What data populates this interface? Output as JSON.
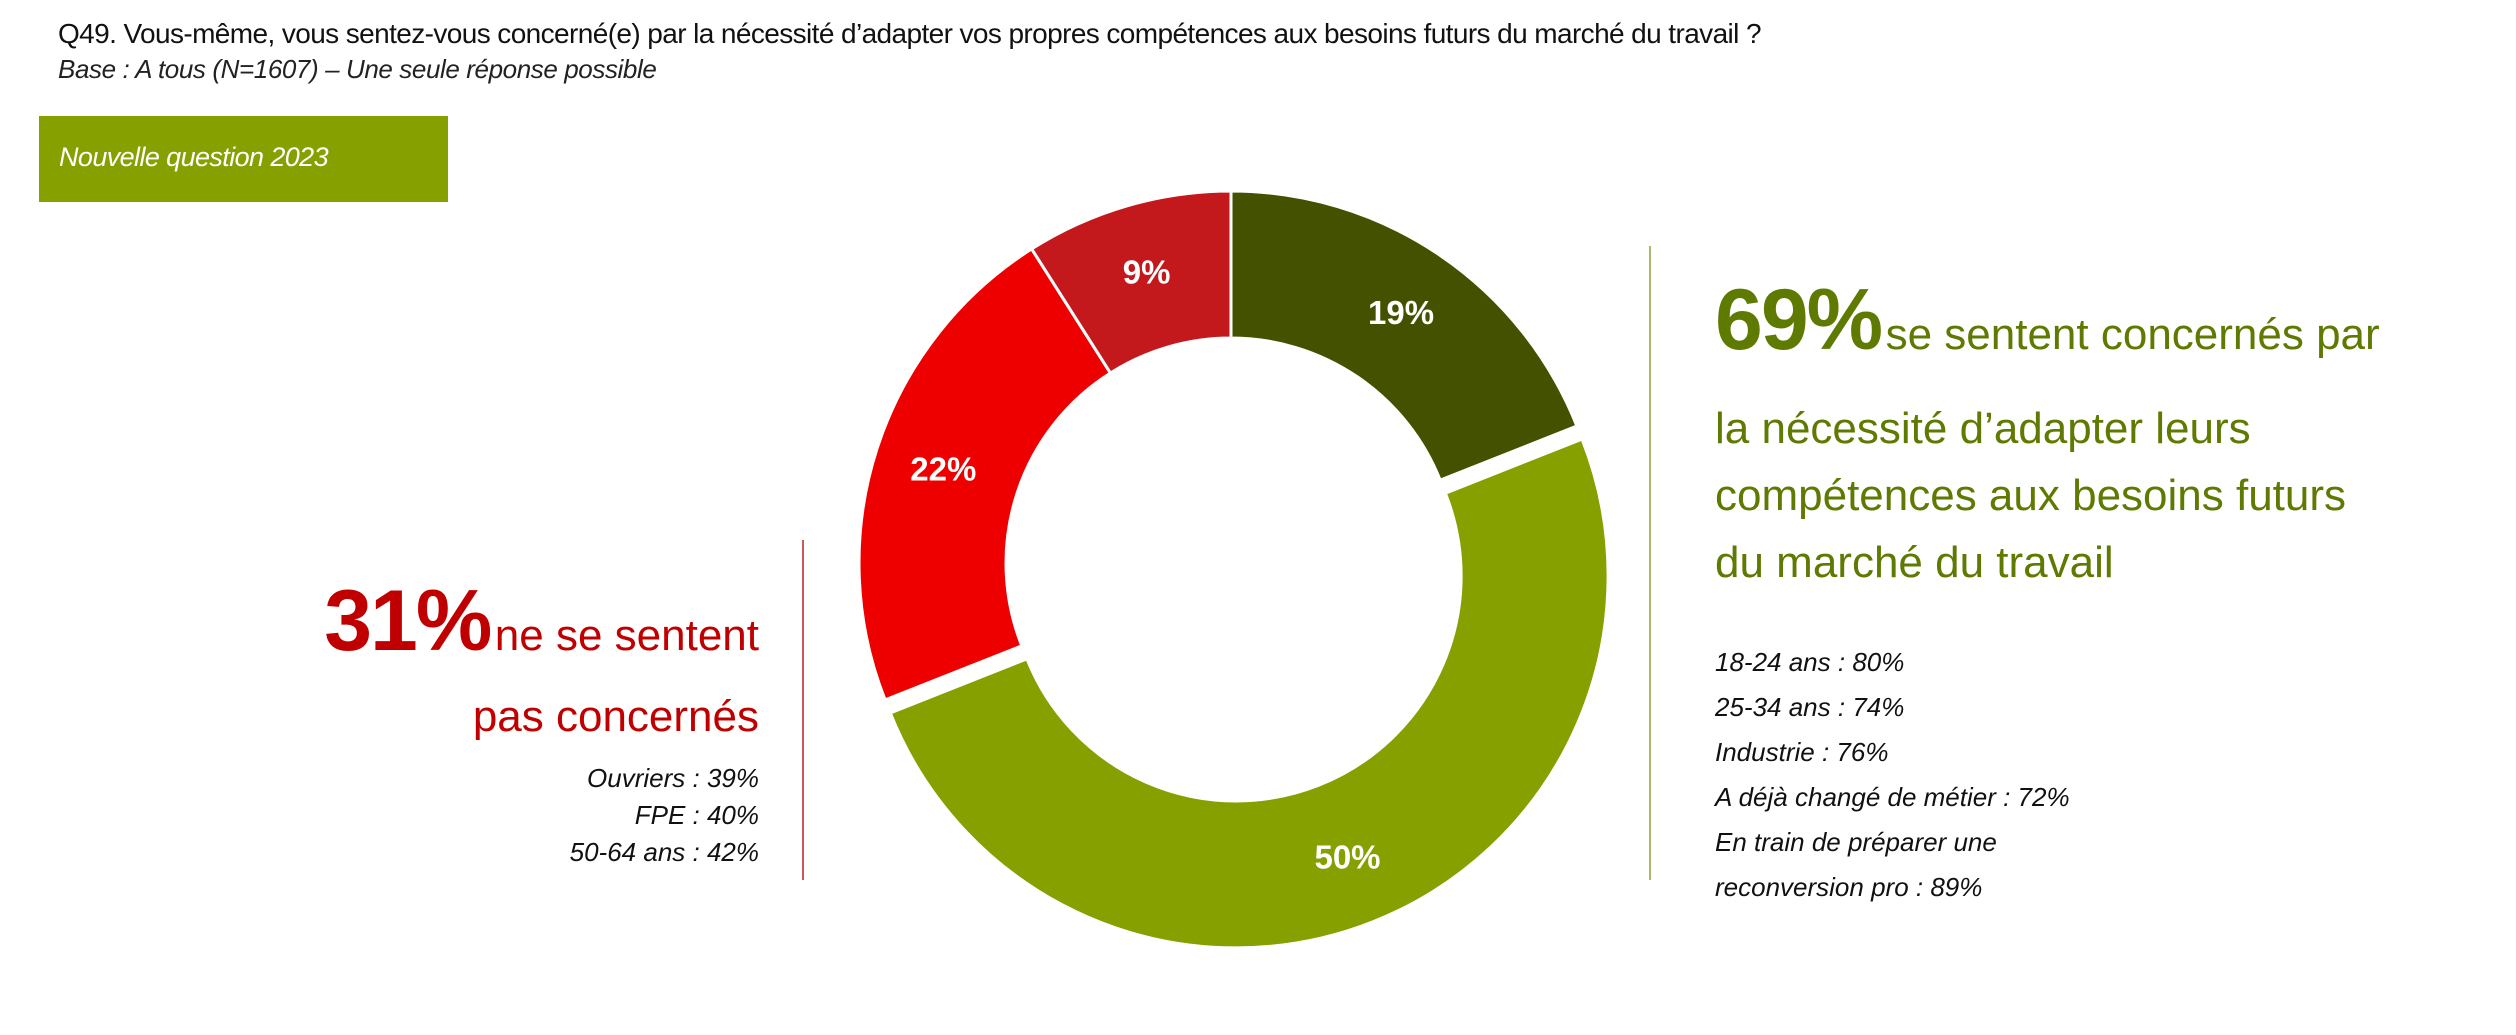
{
  "header": {
    "title": "Q49. Vous-même, vous sentez-vous concerné(e) par la nécessité d’adapter vos propres compétences aux besoins futurs du marché du travail ?",
    "subtitle": "Base :  A tous (N=1607) – Une seule réponse possible",
    "badge": "Nouvelle question 2023",
    "badge_color": "#86a000"
  },
  "chart_data": {
    "type": "pie",
    "donut": true,
    "start": "top, clockwise",
    "slices": [
      {
        "value": 19,
        "label": "19%",
        "color": "#445200",
        "exploded": false
      },
      {
        "value": 50,
        "label": "50%",
        "color": "#86a000",
        "exploded": true
      },
      {
        "value": 22,
        "label": "22%",
        "color": "#ee0000",
        "exploded": false
      },
      {
        "value": 9,
        "label": "9%",
        "color": "#c4191c",
        "exploded": false
      }
    ]
  },
  "left_summary": {
    "percent": "31%",
    "line1": "ne se sentent",
    "line2": "pas concernés",
    "color": "#c00000",
    "details": [
      "Ouvriers : 39%",
      "FPE : 40%",
      "50-64 ans : 42%"
    ]
  },
  "right_summary": {
    "percent": "69%",
    "line1": "se sentent concernés par",
    "line2": "la nécessité d’adapter leurs",
    "line3": "compétences aux besoins futurs",
    "line4": "du marché du travail",
    "color": "#5f7a00",
    "details": [
      "18-24 ans : 80%",
      "25-34 ans : 74%",
      "Industrie : 76%",
      "A déjà changé de métier : 72%",
      "En train de préparer une",
      "reconversion pro : 89%"
    ]
  }
}
